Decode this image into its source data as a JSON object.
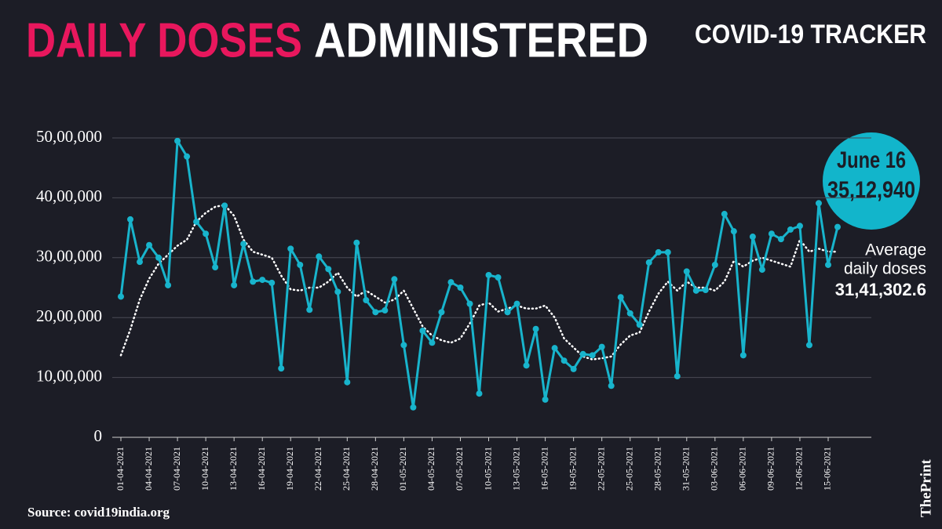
{
  "chart_data": {
    "type": "line",
    "title_highlight": "DAILY DOSES",
    "title": "ADMINISTERED",
    "tracker": "COVID-19 TRACKER",
    "source": "Source: covid19india.org",
    "brand": "ThePrint",
    "callout": {
      "label": "June 16",
      "value_label": "35,12,940"
    },
    "average": {
      "label": [
        "Average",
        "daily doses"
      ],
      "value_label": "31,41,302.6"
    },
    "x": [
      "01-04-2021",
      "02-04-2021",
      "03-04-2021",
      "04-04-2021",
      "05-04-2021",
      "06-04-2021",
      "07-04-2021",
      "08-04-2021",
      "09-04-2021",
      "10-04-2021",
      "11-04-2021",
      "12-04-2021",
      "13-04-2021",
      "14-04-2021",
      "15-04-2021",
      "16-04-2021",
      "17-04-2021",
      "18-04-2021",
      "19-04-2021",
      "20-04-2021",
      "21-04-2021",
      "22-04-2021",
      "23-04-2021",
      "24-04-2021",
      "25-04-2021",
      "26-04-2021",
      "27-04-2021",
      "28-04-2021",
      "29-04-2021",
      "30-04-2021",
      "01-05-2021",
      "02-05-2021",
      "03-05-2021",
      "04-05-2021",
      "05-05-2021",
      "06-05-2021",
      "07-05-2021",
      "08-05-2021",
      "09-05-2021",
      "10-05-2021",
      "11-05-2021",
      "12-05-2021",
      "13-05-2021",
      "14-05-2021",
      "15-05-2021",
      "16-05-2021",
      "17-05-2021",
      "18-05-2021",
      "19-05-2021",
      "20-05-2021",
      "21-05-2021",
      "22-05-2021",
      "23-05-2021",
      "24-05-2021",
      "25-05-2021",
      "26-05-2021",
      "27-05-2021",
      "28-05-2021",
      "29-05-2021",
      "30-05-2021",
      "31-05-2021",
      "01-06-2021",
      "02-06-2021",
      "03-06-2021",
      "04-06-2021",
      "05-06-2021",
      "06-06-2021",
      "07-06-2021",
      "08-06-2021",
      "09-06-2021",
      "10-06-2021",
      "11-06-2021",
      "12-06-2021",
      "13-06-2021",
      "14-06-2021",
      "15-06-2021",
      "16-06-2021"
    ],
    "xticks": [
      "01-04-2021",
      "04-04-2021",
      "07-04-2021",
      "10-04-2021",
      "13-04-2021",
      "16-04-2021",
      "19-04-2021",
      "22-04-2021",
      "25-04-2021",
      "28-04-2021",
      "01-05-2021",
      "04-05-2021",
      "07-05-2021",
      "10-05-2021",
      "13-05-2021",
      "16-05-2021",
      "19-05-2021",
      "22-05-2021",
      "25-05-2021",
      "28-05-2021",
      "31-05-2021",
      "03-06-2021",
      "06-06-2021",
      "09-06-2021",
      "12-06-2021",
      "15-06-2021"
    ],
    "series": [
      {
        "color": "#18b4cc",
        "style": "solid-markers",
        "values": [
          2350000,
          3640000,
          2930000,
          3210000,
          3000000,
          2540000,
          4950000,
          4690000,
          3600000,
          3400000,
          2840000,
          3870000,
          2540000,
          3230000,
          2600000,
          2630000,
          2580000,
          1150000,
          3150000,
          2880000,
          2130000,
          3020000,
          2810000,
          2430000,
          920000,
          3250000,
          2290000,
          2090000,
          2120000,
          2640000,
          1540000,
          500000,
          1780000,
          1580000,
          2090000,
          2590000,
          2500000,
          2230000,
          730000,
          2710000,
          2670000,
          2090000,
          2230000,
          1200000,
          1810000,
          630000,
          1490000,
          1280000,
          1140000,
          1390000,
          1370000,
          1510000,
          860000,
          2340000,
          2070000,
          1880000,
          2920000,
          3090000,
          3090000,
          1020000,
          2770000,
          2450000,
          2460000,
          2880000,
          3730000,
          3440000,
          1370000,
          3350000,
          2800000,
          3400000,
          3310000,
          3470000,
          3530000,
          1540000,
          3910000,
          2880000,
          3512940
        ]
      },
      {
        "color": "#ffffff",
        "style": "dotted",
        "values": [
          1370000,
          1800000,
          2300000,
          2650000,
          2900000,
          3050000,
          3200000,
          3300000,
          3600000,
          3750000,
          3850000,
          3880000,
          3700000,
          3300000,
          3100000,
          3050000,
          3000000,
          2700000,
          2470000,
          2450000,
          2500000,
          2500000,
          2600000,
          2750000,
          2500000,
          2350000,
          2450000,
          2350000,
          2250000,
          2300000,
          2450000,
          2150000,
          1850000,
          1700000,
          1620000,
          1580000,
          1650000,
          1900000,
          2200000,
          2250000,
          2100000,
          2150000,
          2200000,
          2150000,
          2150000,
          2200000,
          2000000,
          1650000,
          1500000,
          1350000,
          1300000,
          1320000,
          1350000,
          1550000,
          1700000,
          1750000,
          2100000,
          2400000,
          2600000,
          2450000,
          2600000,
          2500000,
          2500000,
          2450000,
          2600000,
          2950000,
          2850000,
          2950000,
          3000000,
          2950000,
          2900000,
          2850000,
          3300000,
          3100000,
          3150000,
          3100000,
          3100000
        ]
      }
    ],
    "ylim": [
      0,
      5000000
    ],
    "yticks": [
      0,
      {
        "value": 1000000,
        "label": "10,00,000"
      },
      {
        "value": 2000000,
        "label": "20,00,000"
      },
      {
        "value": 3000000,
        "label": "30,00,000"
      },
      {
        "value": 4000000,
        "label": "40,00,000"
      },
      {
        "value": 5000000,
        "label": "50,00,000"
      }
    ],
    "grid": true
  }
}
